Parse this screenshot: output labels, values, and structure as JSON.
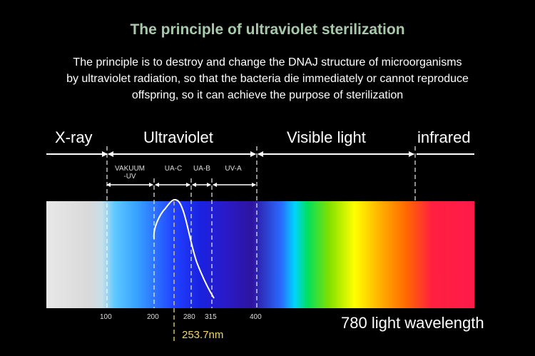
{
  "header": {
    "title": "The principle of ultraviolet sterilization",
    "description_lines": [
      "The principle is to destroy and change the DNAJ structure of microorganisms",
      "by ultraviolet radiation, so that the bacteria die immediately or cannot reproduce",
      "offspring, so it can achieve the purpose of sterilization"
    ]
  },
  "bands": {
    "xray": "X-ray",
    "ultraviolet": "Ultraviolet",
    "visible": "Visible light",
    "infrared": "infrared"
  },
  "uv_subbands": {
    "vakuum_line1": "VAKUUM",
    "vakuum_line2": "-UV",
    "uac": "UA-C",
    "uab": "UA-B",
    "uva": "UV-A"
  },
  "ticks": [
    "100",
    "200",
    "280",
    "315",
    "400"
  ],
  "axis_label": "780 light wavelength",
  "peak_label": "253.7nm",
  "colors": {
    "title": "#a6c9a9",
    "peak": "#f2d66a",
    "background": "#000000"
  }
}
